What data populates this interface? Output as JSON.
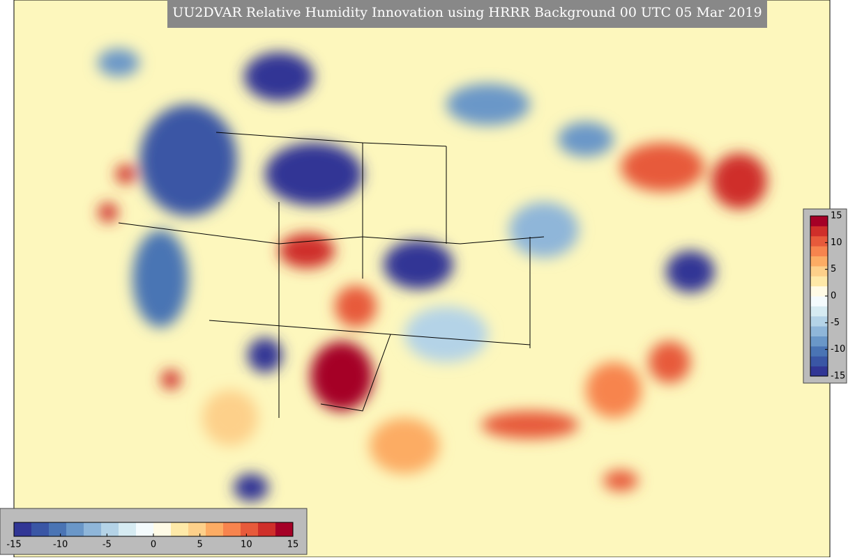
{
  "title": "UU2DVAR Relative Humidity Innovation using HRRR Background 00 UTC 05 Mar 2019",
  "colorbars": [
    {
      "orientation": "horizontal",
      "lim": [
        -15,
        15
      ],
      "ticks": [
        -15,
        -10,
        -5,
        0,
        5,
        10,
        15
      ]
    },
    {
      "orientation": "vertical",
      "lim": [
        -15,
        15
      ],
      "ticks": [
        15,
        10,
        5,
        0,
        -5,
        -10,
        -15
      ]
    }
  ],
  "colors": [
    "#313695",
    "#3a56a5",
    "#4a74b4",
    "#6a97c8",
    "#8fb6d9",
    "#b4d3e7",
    "#d6ebf2",
    "#f4fbfd",
    "#fffbe6",
    "#fee9a8",
    "#fdd08a",
    "#fcac64",
    "#f7844e",
    "#e75a3b",
    "#cf2f2a",
    "#a50026"
  ]
}
